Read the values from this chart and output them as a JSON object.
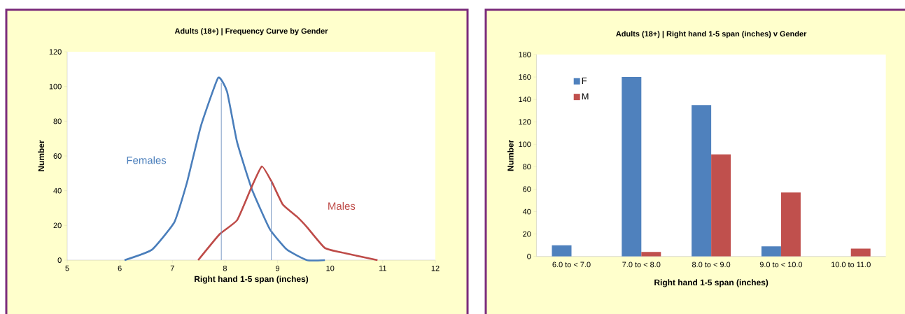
{
  "chart_data": [
    {
      "type": "line",
      "title": "Adults (18+) | Frequency Curve by Gender",
      "xlabel": "Right hand 1-5 span (inches)",
      "ylabel": "Number",
      "xlim": [
        5,
        12
      ],
      "xticks": [
        5,
        6,
        7,
        8,
        9,
        10,
        11,
        12
      ],
      "ylim": [
        0,
        120
      ],
      "yticks": [
        0,
        20,
        40,
        60,
        80,
        100,
        120
      ],
      "series": [
        {
          "name": "Females",
          "color": "#4a7ebb",
          "x": [
            6.09,
            6.61,
            7.04,
            7.28,
            7.54,
            7.87,
            8.04,
            8.23,
            8.51,
            8.85,
            9.18,
            9.56,
            9.9
          ],
          "values": [
            0,
            6,
            22,
            45,
            77,
            105,
            97,
            68,
            41,
            18,
            6,
            0,
            0
          ]
        },
        {
          "name": "Males",
          "color": "#be4b48",
          "x": [
            7.49,
            7.9,
            8.23,
            8.49,
            8.7,
            8.89,
            9.1,
            9.37,
            9.56,
            9.9,
            10.28,
            10.9
          ],
          "values": [
            0,
            15,
            23,
            41,
            54,
            45,
            32,
            25,
            19,
            7,
            4,
            0
          ]
        }
      ],
      "ref_lines": [
        {
          "axis": "x",
          "value": 7.93,
          "color": "#6f8fbf"
        },
        {
          "axis": "x",
          "value": 8.88,
          "color": "#6f8fbf"
        }
      ]
    },
    {
      "type": "bar",
      "title": "Adults (18+) | Right hand 1-5 span (inches) v Gender",
      "xlabel": "Right hand 1-5 span (inches)",
      "ylabel": "Number",
      "categories": [
        "6.0 to < 7.0",
        "7.0 to < 8.0",
        "8.0 to < 9.0",
        "9.0 to < 10.0",
        "10.0 to 11.0"
      ],
      "ylim": [
        0,
        180
      ],
      "yticks": [
        0,
        20,
        40,
        60,
        80,
        100,
        120,
        140,
        160,
        180
      ],
      "legend": "top left",
      "series": [
        {
          "name": "F",
          "color": "#4f81bd",
          "values": [
            10,
            160,
            135,
            9,
            0
          ]
        },
        {
          "name": "M",
          "color": "#c0504d",
          "values": [
            0,
            4,
            91,
            57,
            7
          ]
        }
      ]
    }
  ]
}
